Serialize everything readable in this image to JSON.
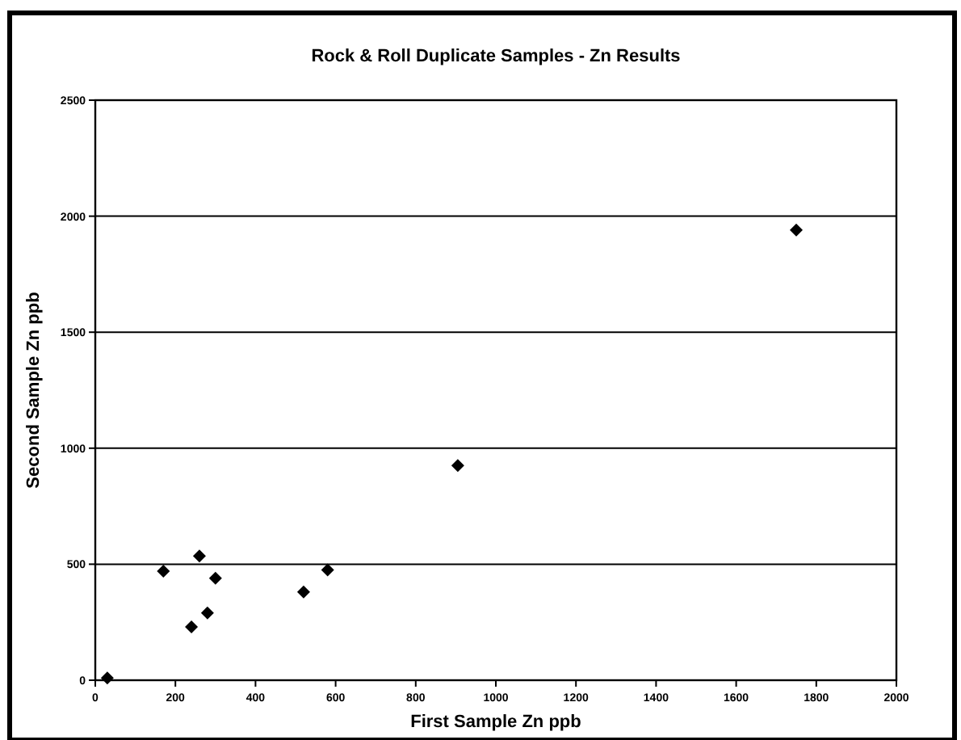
{
  "chart_data": {
    "type": "scatter",
    "title": "Rock & Roll Duplicate Samples - Zn Results",
    "xlabel": "First Sample Zn ppb",
    "ylabel": "Second Sample Zn ppb",
    "x": [
      30,
      170,
      240,
      260,
      280,
      300,
      520,
      580,
      905,
      1750
    ],
    "series": [
      {
        "color": "#000000",
        "values": [
          10,
          470,
          230,
          535,
          290,
          440,
          380,
          475,
          925,
          1940
        ]
      }
    ],
    "xlim": [
      0,
      2000
    ],
    "xticks": [
      0,
      200,
      400,
      600,
      800,
      1000,
      1200,
      1400,
      1600,
      1800,
      2000
    ],
    "ylim": [
      0,
      2500
    ],
    "yticks": [
      0,
      500,
      1000,
      1500,
      2000,
      2500
    ],
    "grid": "y",
    "marker": "diamond"
  }
}
